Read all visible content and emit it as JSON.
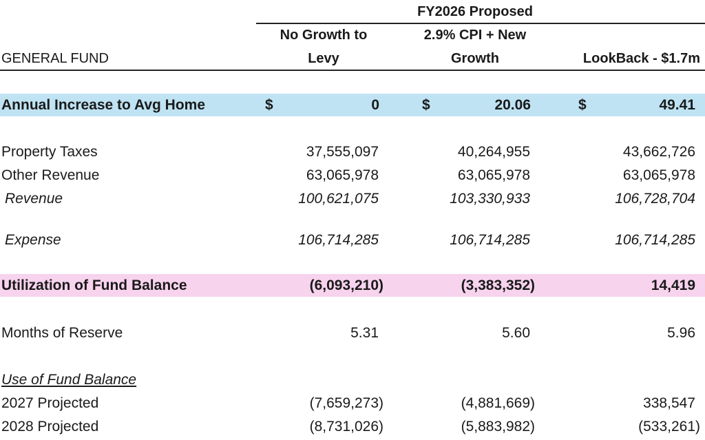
{
  "header": {
    "group_title": "FY2026 Proposed",
    "fund_label": "GENERAL FUND",
    "col1_line1": "No Growth to",
    "col1_line2": "Levy",
    "col2_line1": "2.9% CPI + New",
    "col2_line2": "Growth",
    "col3": "LookBack - $1.7m"
  },
  "annual_increase": {
    "label": "Annual Increase to Avg Home",
    "currency": "$",
    "values": [
      "0",
      "20.06",
      "49.41"
    ],
    "band_color": "#bfe3f3"
  },
  "rows": {
    "property_taxes": {
      "label": "Property Taxes",
      "values": [
        "37,555,097",
        "40,264,955",
        "43,662,726"
      ]
    },
    "other_revenue": {
      "label": "Other Revenue",
      "values": [
        "63,065,978",
        "63,065,978",
        "63,065,978"
      ]
    },
    "revenue": {
      "label": "Revenue",
      "values": [
        "100,621,075",
        "103,330,933",
        "106,728,704"
      ]
    },
    "expense": {
      "label": "Expense",
      "values": [
        "106,714,285",
        "106,714,285",
        "106,714,285"
      ]
    }
  },
  "utilization": {
    "label": "Utilization of Fund Balance",
    "values": [
      "(6,093,210)",
      "(3,383,352)",
      "14,419"
    ],
    "band_color": "#f7d3ee"
  },
  "months_reserve": {
    "label": "Months of Reserve",
    "values": [
      "5.31",
      "5.60",
      "5.96"
    ]
  },
  "use_of_fund_balance": {
    "heading": "Use of Fund Balance",
    "rows": [
      {
        "label": "2027 Projected",
        "values": [
          "(7,659,273)",
          "(4,881,669)",
          "338,547"
        ]
      },
      {
        "label": "2028 Projected",
        "values": [
          "(8,731,026)",
          "(5,883,982)",
          "(533,261)"
        ]
      }
    ]
  }
}
